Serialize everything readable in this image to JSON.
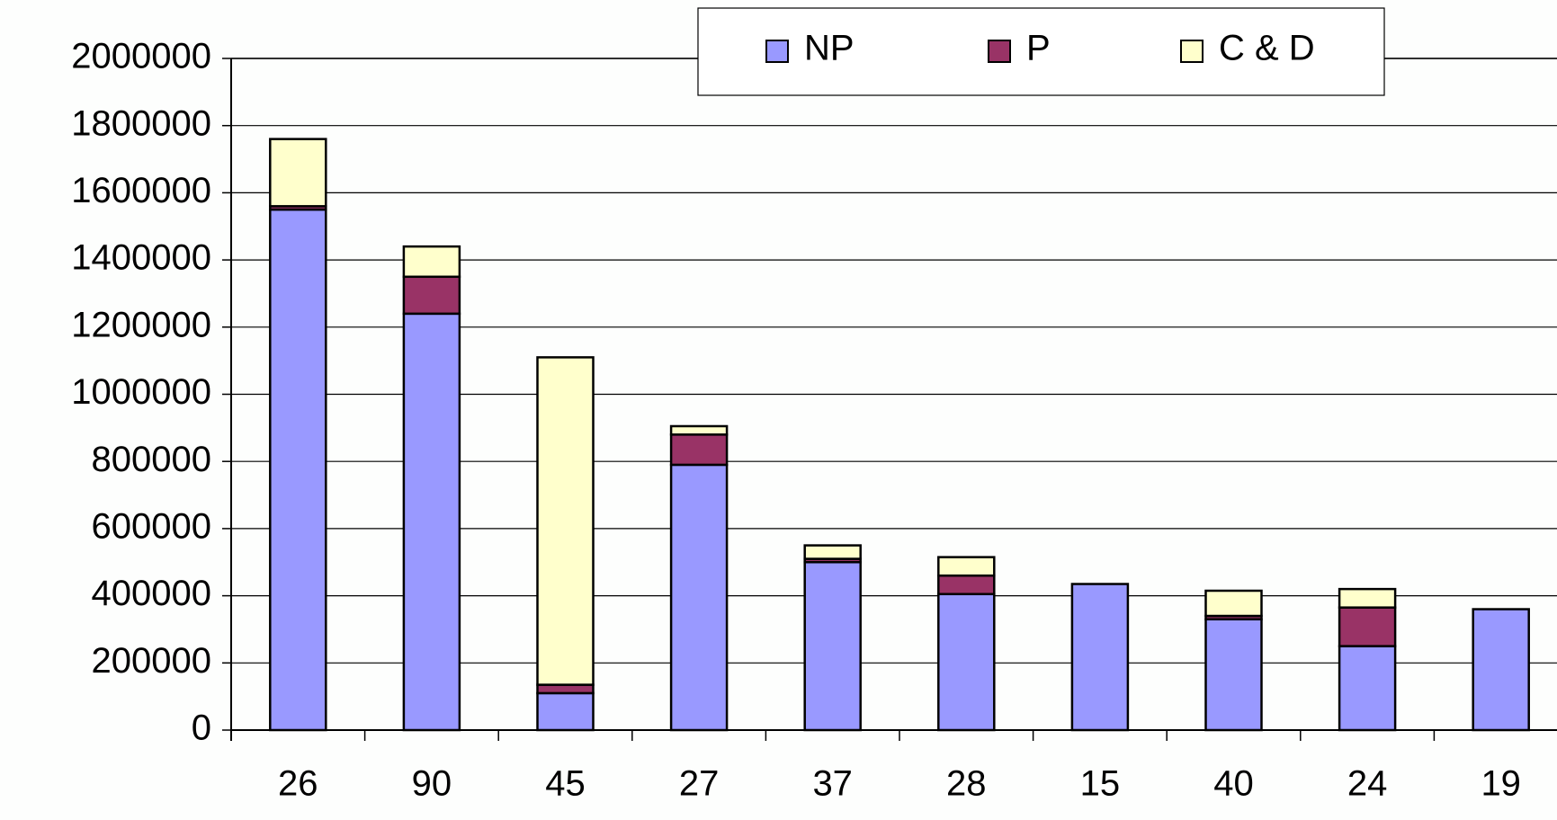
{
  "chart_data": {
    "type": "stacked_bar",
    "categories": [
      "26",
      "90",
      "45",
      "27",
      "37",
      "28",
      "15",
      "40",
      "24",
      "19"
    ],
    "series": [
      {
        "name": "NP",
        "color": "#9999ff",
        "values": [
          1550000,
          1240000,
          110000,
          790000,
          500000,
          405000,
          435000,
          330000,
          250000,
          360000
        ]
      },
      {
        "name": "P",
        "color": "#993366",
        "values": [
          10000,
          110000,
          25000,
          90000,
          10000,
          55000,
          0,
          10000,
          115000,
          0
        ]
      },
      {
        "name": "C & D",
        "color": "#ffffcc",
        "values": [
          200000,
          90000,
          975000,
          25000,
          40000,
          55000,
          0,
          75000,
          55000,
          0
        ]
      }
    ],
    "ylim": [
      0,
      2000000
    ],
    "yticks": [
      0,
      200000,
      400000,
      600000,
      800000,
      1000000,
      1200000,
      1400000,
      1600000,
      1800000,
      2000000
    ],
    "grid": true,
    "legend": "top"
  }
}
